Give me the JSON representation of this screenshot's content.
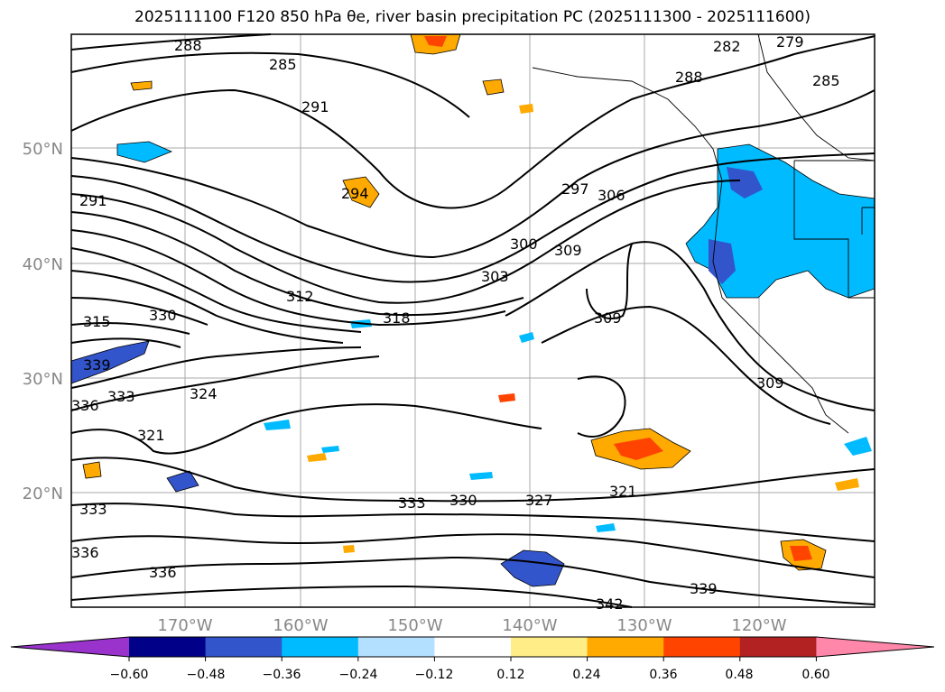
{
  "title": "2025111100 F120 850 hPa θe, river basin precipitation PC (2025111300 - 2025111600)",
  "map": {
    "lat_labels": [
      "50°N",
      "40°N",
      "30°N",
      "20°N"
    ],
    "lon_labels": [
      "170°W",
      "160°W",
      "150°W",
      "140°W",
      "130°W",
      "120°W"
    ],
    "contour_labels": [
      "288",
      "285",
      "291",
      "282",
      "279",
      "288",
      "285",
      "291",
      "294",
      "297",
      "306",
      "300",
      "309",
      "303",
      "312",
      "318",
      "315",
      "330",
      "309",
      "339",
      "336",
      "333",
      "324",
      "321",
      "309",
      "333",
      "330",
      "327",
      "321",
      "333",
      "336",
      "336",
      "339",
      "342"
    ]
  },
  "colorbar": {
    "ticks": [
      "−0.60",
      "−0.48",
      "−0.36",
      "−0.24",
      "−0.12",
      "0.12",
      "0.24",
      "0.36",
      "0.48",
      "0.60"
    ],
    "colors": [
      "#9933cc",
      "#000088",
      "#3355cc",
      "#00bbff",
      "#b3e0ff",
      "#ffffff",
      "#ffee88",
      "#ffaa00",
      "#ff4400",
      "#b22222",
      "#ff88aa"
    ]
  }
}
